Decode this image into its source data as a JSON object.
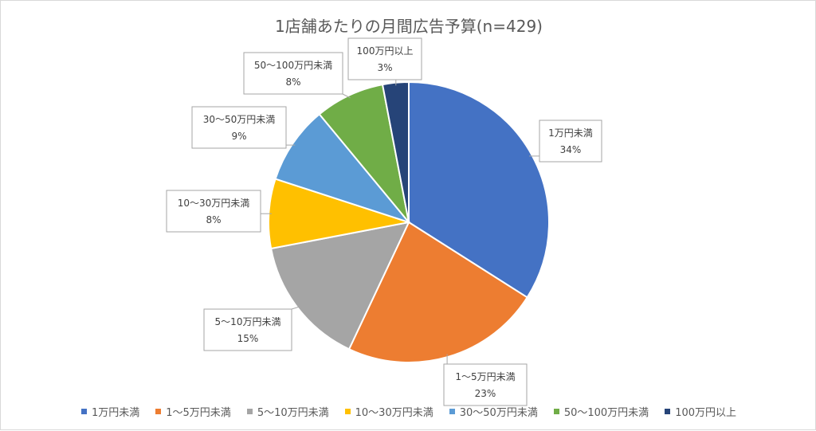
{
  "chart_data": {
    "type": "pie",
    "title": "1店舗あたりの月間広告予算(n=429)",
    "categories": [
      "1万円未満",
      "1～5万円未満",
      "5～10万円未満",
      "10～30万円未満",
      "30～50万円未満",
      "50～100万円未満",
      "100万円以上"
    ],
    "values": [
      34,
      23,
      15,
      8,
      9,
      8,
      3
    ],
    "value_labels": [
      "34%",
      "23%",
      "15%",
      "8%",
      "9%",
      "8%",
      "3%"
    ],
    "colors": [
      "#4472C4",
      "#ED7D31",
      "#A5A5A5",
      "#FFC000",
      "#5B9BD5",
      "#70AD47",
      "#264478"
    ],
    "legend_position": "bottom",
    "start_angle": "12 o'clock",
    "direction": "clockwise"
  }
}
